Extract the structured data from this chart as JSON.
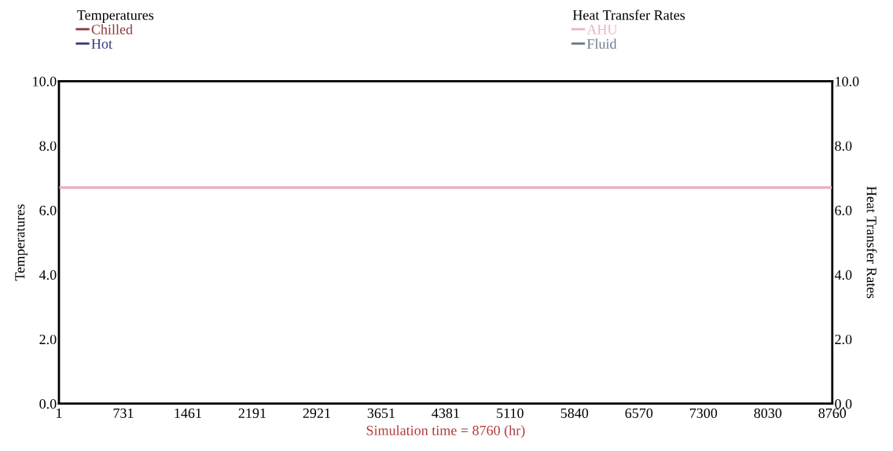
{
  "chart_data": {
    "type": "line",
    "xlabel": "Simulation time = 8760 (hr)",
    "ylabel": "Temperatures",
    "y2label": "Heat Transfer Rates",
    "annotations": [
      "Temperatures",
      "Heat Transfer Rates"
    ],
    "x": [
      1,
      8760
    ],
    "series": [
      {
        "name": "Chilled",
        "color": "#8b3a3a",
        "values": [
          null,
          null
        ]
      },
      {
        "name": "Hot",
        "color": "#3a3a7a",
        "values": [
          null,
          null
        ]
      },
      {
        "name": "AHU",
        "color": "#e8b4c2",
        "values": [
          6.7,
          6.7
        ],
        "axis": "y2"
      },
      {
        "name": "Fluid",
        "color": "#6a7a8c",
        "values": [
          null,
          null
        ],
        "axis": "y2"
      }
    ],
    "xlim": [
      1,
      8760
    ],
    "xticks": [
      1,
      731,
      1461,
      2191,
      2921,
      3651,
      4381,
      5110,
      5840,
      6570,
      7300,
      8030,
      8760
    ],
    "ylim": [
      0,
      10
    ],
    "yticks": [
      {
        "value": 0,
        "label": "0.0"
      },
      {
        "value": 2,
        "label": "2.0"
      },
      {
        "value": 4,
        "label": "4.0"
      },
      {
        "value": 6,
        "label": "6.0"
      },
      {
        "value": 8,
        "label": "8.0"
      },
      {
        "value": 10,
        "label": "10.0"
      }
    ],
    "y2lim": [
      0,
      10
    ],
    "y2ticks": [
      {
        "value": 0,
        "label": "0.0"
      },
      {
        "value": 2,
        "label": "2.0"
      },
      {
        "value": 4,
        "label": "4.0"
      },
      {
        "value": 6,
        "label": "6.0"
      },
      {
        "value": 8,
        "label": "8.0"
      },
      {
        "value": 10,
        "label": "10.0"
      }
    ],
    "legend": "top"
  }
}
